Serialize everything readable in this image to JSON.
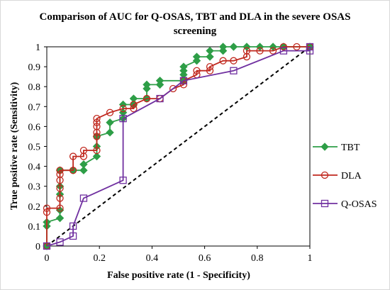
{
  "chart_data": {
    "type": "line",
    "title": "Comparison of AUC for Q-OSAS, TBT and DLA in the severe OSAS screening",
    "xlabel": "False positive rate (1 - Specificity)",
    "ylabel": "True positive rate (Sensitivity)",
    "xlim": [
      0,
      1
    ],
    "ylim": [
      0,
      1
    ],
    "x_ticks": [
      "0",
      "0.2",
      "0.4",
      "0.6",
      "0.8",
      "1"
    ],
    "y_ticks": [
      "0",
      "0.1",
      "0.2",
      "0.3",
      "0.4",
      "0.5",
      "0.6",
      "0.7",
      "0.8",
      "0.9",
      "1"
    ],
    "grid": false,
    "legend_position": "right",
    "series": [
      {
        "name": "TBT",
        "color": "#2e9e47",
        "marker": "diamond",
        "points": [
          [
            0,
            0
          ],
          [
            0,
            0.1
          ],
          [
            0,
            0.12
          ],
          [
            0.05,
            0.14
          ],
          [
            0.05,
            0.18
          ],
          [
            0.05,
            0.26
          ],
          [
            0.05,
            0.3
          ],
          [
            0.05,
            0.38
          ],
          [
            0.1,
            0.38
          ],
          [
            0.14,
            0.38
          ],
          [
            0.14,
            0.41
          ],
          [
            0.19,
            0.45
          ],
          [
            0.19,
            0.5
          ],
          [
            0.19,
            0.55
          ],
          [
            0.24,
            0.57
          ],
          [
            0.24,
            0.62
          ],
          [
            0.29,
            0.64
          ],
          [
            0.29,
            0.67
          ],
          [
            0.29,
            0.71
          ],
          [
            0.33,
            0.71
          ],
          [
            0.33,
            0.74
          ],
          [
            0.38,
            0.74
          ],
          [
            0.38,
            0.79
          ],
          [
            0.38,
            0.81
          ],
          [
            0.43,
            0.81
          ],
          [
            0.43,
            0.83
          ],
          [
            0.52,
            0.83
          ],
          [
            0.52,
            0.86
          ],
          [
            0.52,
            0.88
          ],
          [
            0.52,
            0.9
          ],
          [
            0.57,
            0.93
          ],
          [
            0.57,
            0.95
          ],
          [
            0.62,
            0.95
          ],
          [
            0.62,
            0.98
          ],
          [
            0.67,
            0.98
          ],
          [
            0.67,
            1
          ],
          [
            0.71,
            1
          ],
          [
            0.76,
            1
          ],
          [
            0.81,
            1
          ],
          [
            0.86,
            1
          ],
          [
            0.9,
            1
          ],
          [
            1,
            1
          ]
        ]
      },
      {
        "name": "DLA",
        "color": "#c0281e",
        "marker": "circle",
        "points": [
          [
            0,
            0
          ],
          [
            0,
            0.17
          ],
          [
            0,
            0.19
          ],
          [
            0.05,
            0.19
          ],
          [
            0.05,
            0.24
          ],
          [
            0.05,
            0.29
          ],
          [
            0.05,
            0.33
          ],
          [
            0.05,
            0.36
          ],
          [
            0.05,
            0.38
          ],
          [
            0.1,
            0.38
          ],
          [
            0.1,
            0.45
          ],
          [
            0.14,
            0.45
          ],
          [
            0.14,
            0.48
          ],
          [
            0.19,
            0.48
          ],
          [
            0.19,
            0.55
          ],
          [
            0.19,
            0.57
          ],
          [
            0.19,
            0.6
          ],
          [
            0.19,
            0.62
          ],
          [
            0.19,
            0.64
          ],
          [
            0.24,
            0.67
          ],
          [
            0.29,
            0.69
          ],
          [
            0.33,
            0.69
          ],
          [
            0.33,
            0.71
          ],
          [
            0.38,
            0.74
          ],
          [
            0.43,
            0.74
          ],
          [
            0.48,
            0.79
          ],
          [
            0.52,
            0.81
          ],
          [
            0.52,
            0.83
          ],
          [
            0.57,
            0.86
          ],
          [
            0.57,
            0.88
          ],
          [
            0.62,
            0.88
          ],
          [
            0.62,
            0.9
          ],
          [
            0.67,
            0.93
          ],
          [
            0.71,
            0.93
          ],
          [
            0.76,
            0.95
          ],
          [
            0.76,
            0.98
          ],
          [
            0.81,
            0.98
          ],
          [
            0.86,
            0.98
          ],
          [
            0.9,
            1
          ],
          [
            0.95,
            1
          ],
          [
            1,
            1
          ]
        ]
      },
      {
        "name": "Q-OSAS",
        "color": "#7030a0",
        "marker": "square",
        "points": [
          [
            0,
            0
          ],
          [
            0.05,
            0.02
          ],
          [
            0.1,
            0.05
          ],
          [
            0.1,
            0.1
          ],
          [
            0.14,
            0.24
          ],
          [
            0.29,
            0.33
          ],
          [
            0.29,
            0.64
          ],
          [
            0.43,
            0.74
          ],
          [
            0.52,
            0.83
          ],
          [
            0.71,
            0.88
          ],
          [
            0.9,
            0.98
          ],
          [
            1,
            0.98
          ],
          [
            1,
            1
          ]
        ]
      },
      {
        "name": "",
        "color": "#000000",
        "style": "dashed",
        "points": [
          [
            0,
            0
          ],
          [
            1,
            1
          ]
        ]
      }
    ]
  }
}
